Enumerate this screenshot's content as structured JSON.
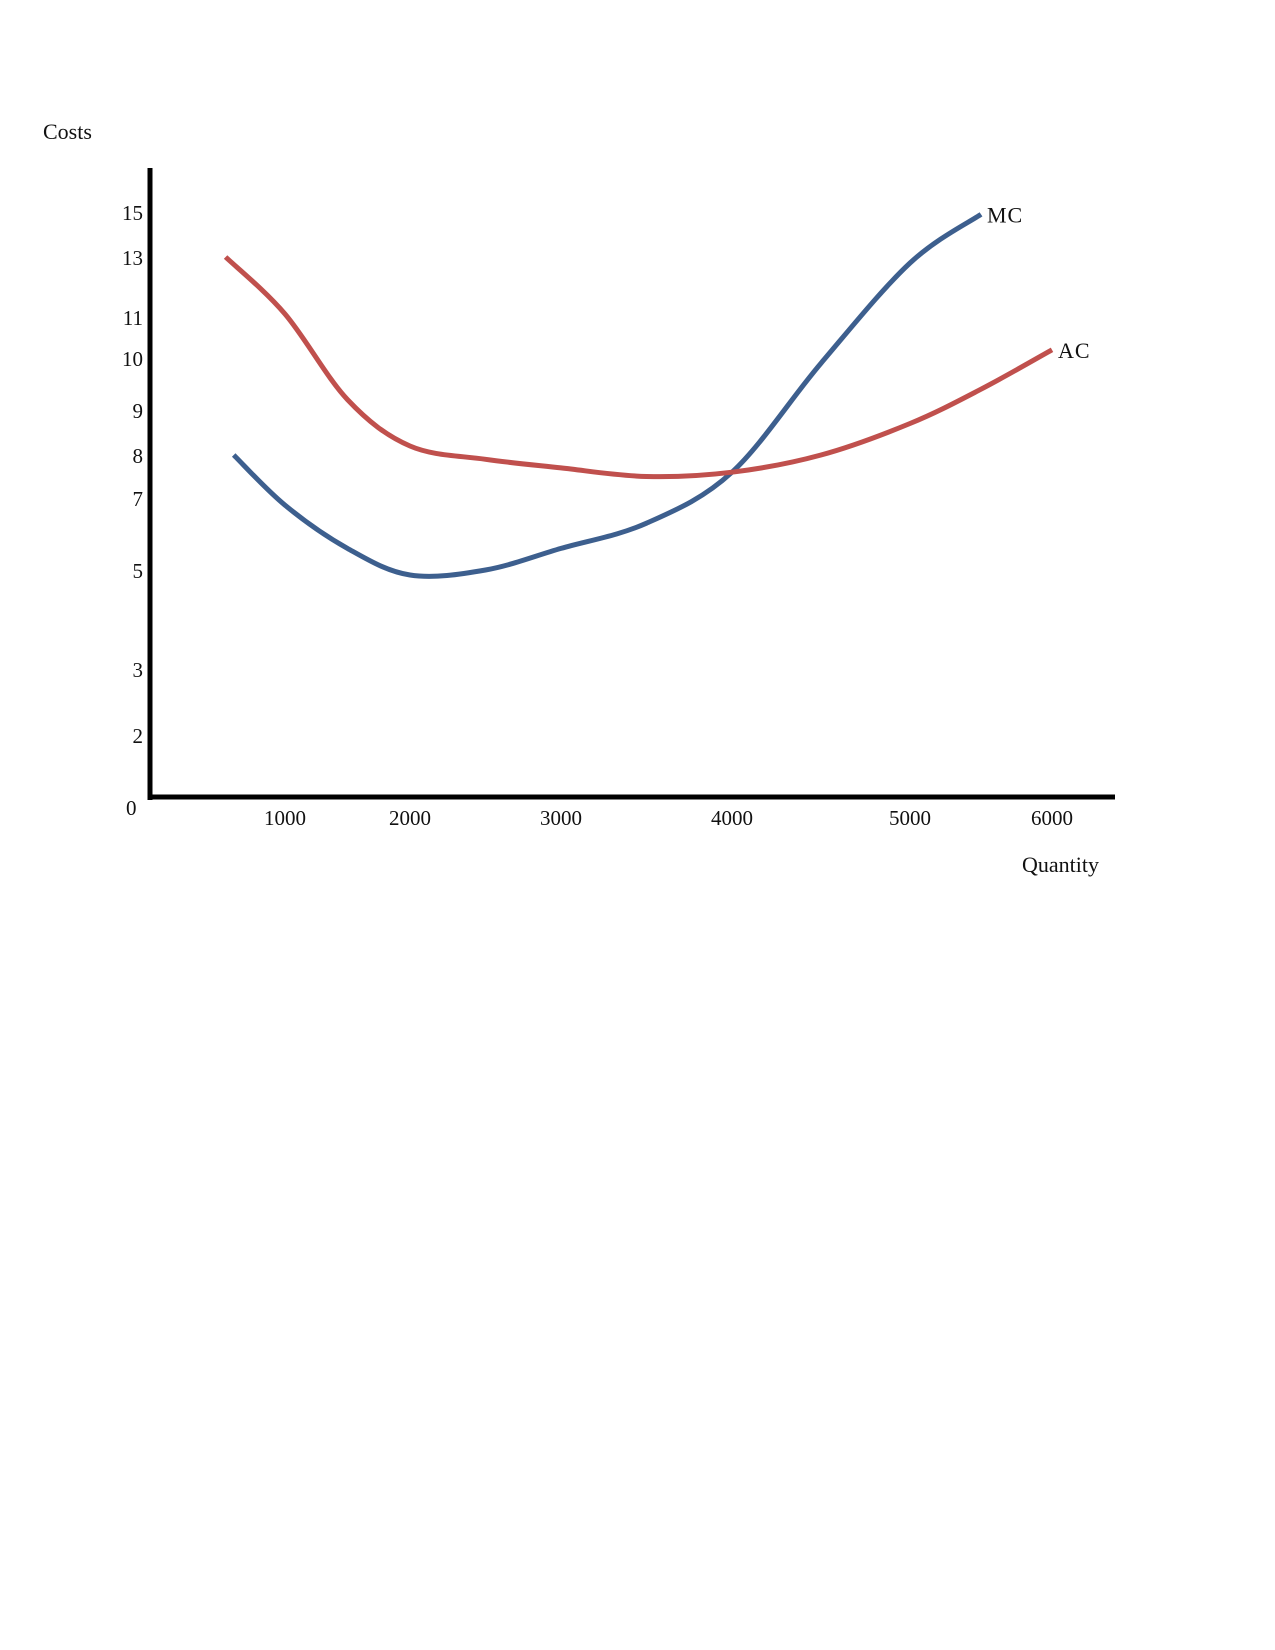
{
  "chart_data": {
    "type": "line",
    "title": "",
    "ylabel": "Costs",
    "xlabel": "Quantity",
    "origin_label": "0",
    "y_ticks": [
      "2",
      "3",
      "5",
      "7",
      "8",
      "9",
      "10",
      "11",
      "13",
      "15"
    ],
    "x_ticks": [
      "1000",
      "2000",
      "3000",
      "4000",
      "5000",
      "6000"
    ],
    "grid": false,
    "legend": "inline labels at line ends",
    "series": [
      {
        "name": "MC",
        "color": "#3d5f8e",
        "points": [
          [
            620,
            8.0
          ],
          [
            1000,
            6.8
          ],
          [
            1500,
            5.6
          ],
          [
            2000,
            4.9
          ],
          [
            2500,
            5.0
          ],
          [
            3000,
            5.6
          ],
          [
            3500,
            6.3
          ],
          [
            4000,
            7.6
          ],
          [
            4500,
            9.9
          ],
          [
            5000,
            12.8
          ],
          [
            5500,
            14.9
          ]
        ]
      },
      {
        "name": "AC",
        "color": "#c0504d",
        "points": [
          [
            560,
            13.0
          ],
          [
            1000,
            11.1
          ],
          [
            1500,
            9.2
          ],
          [
            2000,
            8.2
          ],
          [
            2500,
            7.9
          ],
          [
            3000,
            7.7
          ],
          [
            3500,
            7.5
          ],
          [
            4000,
            7.6
          ],
          [
            4500,
            8.0
          ],
          [
            5000,
            8.7
          ],
          [
            5500,
            9.4
          ],
          [
            6000,
            10.2
          ]
        ]
      }
    ]
  }
}
